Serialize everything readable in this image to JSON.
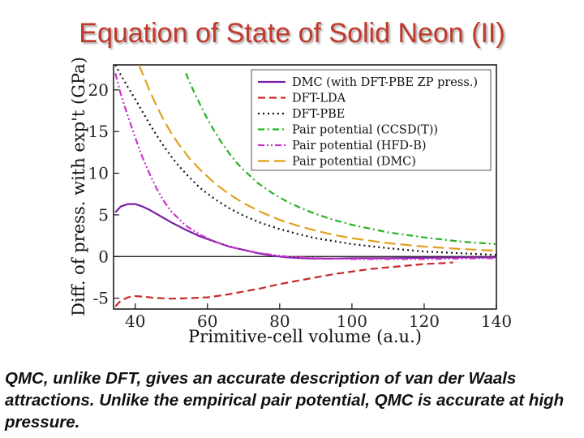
{
  "slide_title": "Equation of State of Solid Neon (II)",
  "caption": "QMC, unlike DFT, gives an accurate description of van der Waals attractions. Unlike the empirical pair potential, QMC is accurate at high pressure.",
  "chart_data": {
    "type": "line",
    "xlabel": "Primitive-cell volume (a.u.)",
    "ylabel": "Diff. of press. with exp't (GPa)",
    "xlim": [
      34,
      140
    ],
    "ylim": [
      -6.3,
      23
    ],
    "xticks": [
      40,
      60,
      80,
      100,
      120,
      140
    ],
    "yticks": [
      -5,
      0,
      5,
      10,
      15,
      20
    ],
    "grid": false,
    "legend_position": "top-right",
    "zero_line": true,
    "series": [
      {
        "name": "DMC (with DFT-PBE ZP press.)",
        "color": "#7a1fa2",
        "dash": "solid",
        "x": [
          34.5,
          36,
          38,
          40,
          42,
          44,
          46,
          48,
          50,
          54,
          58,
          62,
          66,
          70,
          74,
          78,
          82,
          86,
          90,
          95,
          100,
          110,
          120,
          130,
          140
        ],
        "y": [
          5.3,
          6.0,
          6.3,
          6.3,
          6.0,
          5.6,
          5.1,
          4.6,
          4.1,
          3.2,
          2.4,
          1.8,
          1.2,
          0.8,
          0.4,
          0.1,
          -0.1,
          -0.2,
          -0.25,
          -0.25,
          -0.2,
          -0.2,
          -0.15,
          -0.1,
          -0.1
        ]
      },
      {
        "name": "DFT-LDA",
        "color": "#c62828",
        "dash": "dashed",
        "x": [
          34.5,
          36,
          38,
          40,
          42,
          45,
          50,
          55,
          60,
          65,
          70,
          75,
          80,
          85,
          90,
          95,
          100,
          105,
          110,
          115,
          120,
          125,
          128
        ],
        "y": [
          -6.0,
          -5.3,
          -4.9,
          -4.75,
          -4.8,
          -4.95,
          -5.05,
          -5.0,
          -4.9,
          -4.6,
          -4.2,
          -3.8,
          -3.3,
          -2.9,
          -2.5,
          -2.1,
          -1.8,
          -1.5,
          -1.3,
          -1.1,
          -0.9,
          -0.8,
          -0.7
        ]
      },
      {
        "name": "DFT-PBE",
        "color": "#111111",
        "dash": "dotted",
        "x": [
          34.5,
          36,
          38,
          40,
          42,
          44,
          46,
          48,
          50,
          52,
          55,
          58,
          62,
          66,
          70,
          75,
          80,
          85,
          90,
          100,
          110,
          120,
          130,
          140
        ],
        "y": [
          23,
          21.8,
          20.3,
          18.9,
          17.4,
          15.9,
          14.5,
          13.2,
          12.0,
          10.9,
          9.5,
          8.2,
          6.9,
          5.8,
          4.9,
          4.0,
          3.3,
          2.7,
          2.2,
          1.5,
          1.0,
          0.6,
          0.4,
          0.2
        ]
      },
      {
        "name": "Pair potential (CCSD(T))",
        "color": "#22b322",
        "dash": "dashdot",
        "x": [
          54,
          56,
          58,
          60,
          62,
          64,
          66,
          68,
          70,
          74,
          78,
          82,
          86,
          90,
          95,
          100,
          110,
          120,
          130,
          140
        ],
        "y": [
          22.0,
          20.0,
          18.2,
          16.5,
          15.0,
          13.6,
          12.4,
          11.3,
          10.4,
          8.8,
          7.6,
          6.6,
          5.8,
          5.1,
          4.4,
          3.8,
          2.9,
          2.3,
          1.8,
          1.5
        ]
      },
      {
        "name": "Pair potential (HFD-B)",
        "color": "#cc33cc",
        "dash": "dashdotdot",
        "x": [
          34.5,
          36,
          38,
          40,
          42,
          44,
          46,
          48,
          50,
          54,
          58,
          62,
          66,
          70,
          74,
          78,
          82,
          86,
          90,
          95,
          100,
          110,
          120,
          130,
          140
        ],
        "y": [
          22.0,
          19.5,
          16.8,
          14.3,
          11.9,
          9.9,
          8.1,
          6.6,
          5.4,
          3.7,
          2.6,
          1.8,
          1.2,
          0.8,
          0.45,
          0.2,
          0.0,
          -0.1,
          -0.2,
          -0.25,
          -0.3,
          -0.3,
          -0.3,
          -0.25,
          -0.2
        ]
      },
      {
        "name": "Pair potential (DMC)",
        "color": "#e0a020",
        "dash": "longdash",
        "x": [
          41,
          42,
          44,
          46,
          48,
          50,
          52,
          55,
          58,
          62,
          66,
          70,
          75,
          80,
          85,
          90,
          95,
          100,
          110,
          120,
          130,
          140
        ],
        "y": [
          23,
          22.0,
          19.9,
          18.0,
          16.3,
          14.8,
          13.5,
          11.8,
          10.4,
          8.8,
          7.5,
          6.4,
          5.3,
          4.4,
          3.7,
          3.1,
          2.6,
          2.2,
          1.6,
          1.2,
          0.9,
          0.7
        ]
      }
    ]
  }
}
